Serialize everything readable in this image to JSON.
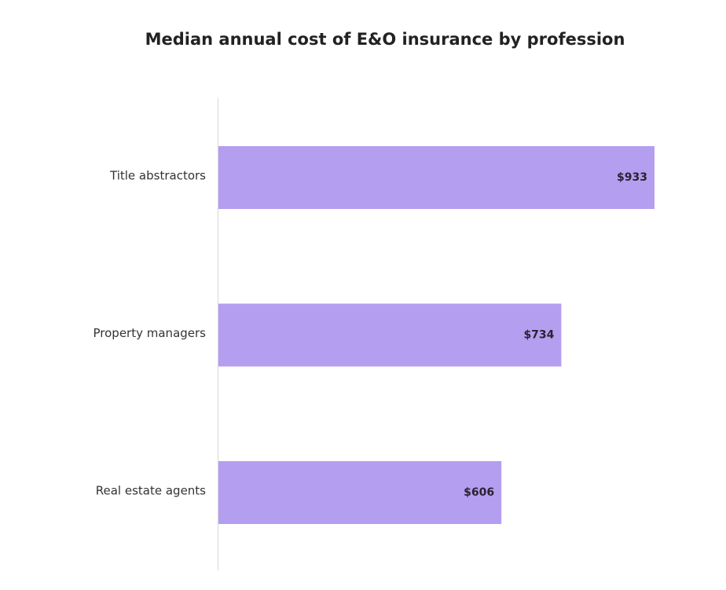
{
  "chart_data": {
    "type": "bar",
    "orientation": "horizontal",
    "title": "Median annual cost of E&O insurance by profession",
    "categories": [
      "Title abstractors",
      "Property managers",
      "Real estate agents"
    ],
    "values": [
      933,
      734,
      606
    ],
    "data_labels": [
      "$933",
      "$734",
      "$606"
    ],
    "xlabel": "",
    "ylabel": "",
    "xlim": [
      0,
      933
    ],
    "grid": false,
    "bar_color": "#b49ef0"
  }
}
